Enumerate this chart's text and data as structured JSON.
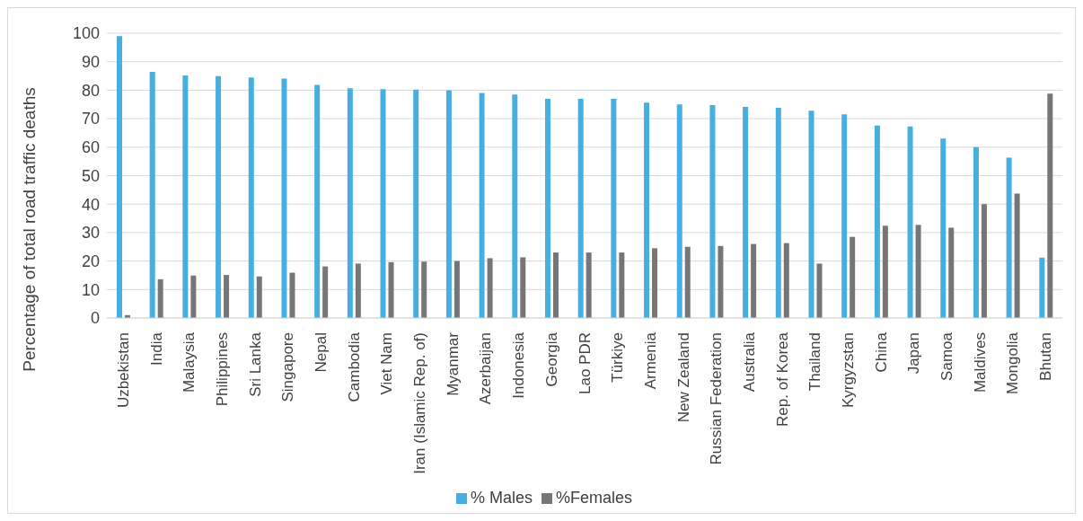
{
  "chart_data": {
    "type": "bar",
    "ylabel": "Percentage of total road traffic deaths",
    "categories": [
      "Uzbekistan",
      "India",
      "Malaysia",
      "Philippines",
      "Sri Lanka",
      "Singapore",
      "Nepal",
      "Cambodia",
      "Viet Nam",
      "Iran (Islamic Rep. of)",
      "Myanmar",
      "Azerbaijan",
      "Indonesia",
      "Georgia",
      "Lao PDR",
      "Türkiye",
      "Armenia",
      "New Zealand",
      "Russian Federation",
      "Australia",
      "Rep. of Korea",
      "Thailand",
      "Kyrgyzstan",
      "China",
      "Japan",
      "Samoa",
      "Maldives",
      "Mongolia",
      "Bhutan"
    ],
    "series": [
      {
        "name": "% Males",
        "color": "#47aedf",
        "values": [
          99,
          86.4,
          85.2,
          84.9,
          84.5,
          84.1,
          81.9,
          80.7,
          80.4,
          80.2,
          80,
          79,
          78.5,
          77,
          77,
          77,
          75.6,
          75,
          74.8,
          74.1,
          73.8,
          72.8,
          71.5,
          67.6,
          67.3,
          63,
          60,
          56.3,
          21.2
        ]
      },
      {
        "name": "%Females",
        "color": "#767676",
        "values": [
          1,
          13.6,
          14.9,
          15.1,
          14.6,
          15.9,
          18.1,
          19.1,
          19.6,
          19.8,
          20,
          21,
          21.3,
          23,
          23,
          23,
          24.5,
          25,
          25.3,
          26,
          26.3,
          19.1,
          28.5,
          32.4,
          32.7,
          31.7,
          40,
          43.7,
          78.8
        ]
      }
    ],
    "ylim": [
      0,
      100
    ],
    "yticks": [
      0,
      10,
      20,
      30,
      40,
      50,
      60,
      70,
      80,
      90,
      100
    ],
    "grid": "y",
    "legend": "bottom"
  }
}
